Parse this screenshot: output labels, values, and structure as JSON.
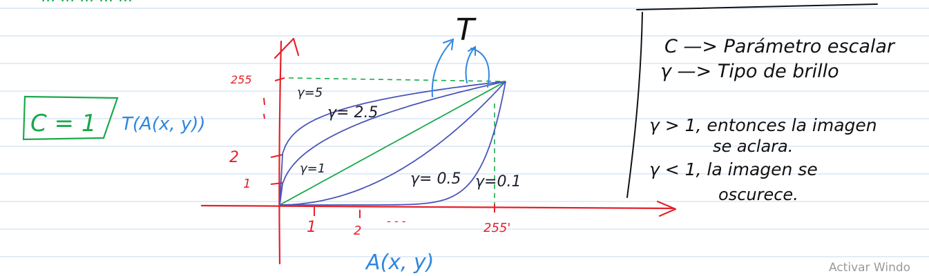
{
  "colors": {
    "ink": "#111111",
    "red": "#e5202a",
    "blue_note": "#2f86e0",
    "green": "#1aa84a",
    "curve_blue": "#4a54b8",
    "rule_line": "#c6daf0",
    "watermark": "#9a9a9a"
  },
  "top_cut_text": "... ... ... ... ...",
  "output_label": "T",
  "c_box_text": "C = 1",
  "function_label": "T(A(x, y))",
  "input_label": "A(x, y)",
  "y_ticks": [
    "255",
    "2",
    "1"
  ],
  "x_ticks": [
    "1",
    "2",
    "- - -",
    "255'"
  ],
  "curves": [
    {
      "label": "γ=5",
      "gamma": 5
    },
    {
      "label": "γ= 2.5",
      "gamma": 2.5
    },
    {
      "label": "γ=1",
      "gamma": 1
    },
    {
      "label": "γ= 0.5",
      "gamma": 0.5
    },
    {
      "label": "γ=0.1",
      "gamma": 0.1
    }
  ],
  "notes": {
    "line1": "C —> Parámetro escalar",
    "line2": "γ —> Tipo de brillo",
    "line3a": "γ > 1, entonces la imagen",
    "line3b": "se aclara.",
    "line4a": "γ < 1, la imagen se",
    "line4b": "oscurece."
  },
  "watermark": "Activar Windo"
}
